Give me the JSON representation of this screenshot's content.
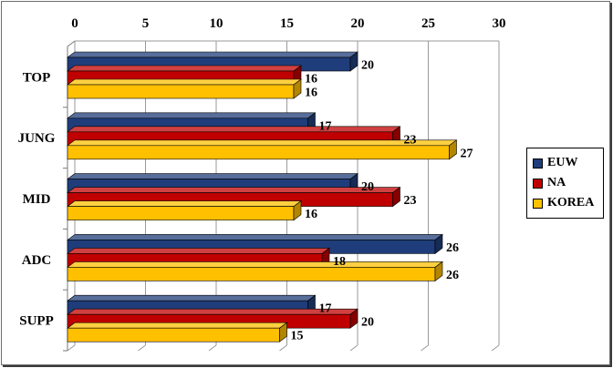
{
  "chart_data": {
    "type": "bar",
    "orientation": "horizontal",
    "style": "3d",
    "categories": [
      "TOP",
      "JUNG",
      "MID",
      "ADC",
      "SUPP"
    ],
    "series": [
      {
        "name": "EUW",
        "color": "#1f3d7a",
        "values": [
          20,
          17,
          20,
          26,
          17
        ]
      },
      {
        "name": "NA",
        "color": "#c00000",
        "values": [
          16,
          23,
          23,
          18,
          20
        ]
      },
      {
        "name": "KOREA",
        "color": "#ffc000",
        "values": [
          16,
          27,
          16,
          26,
          15
        ]
      }
    ],
    "xlim": [
      0,
      30
    ],
    "xticks": [
      "0",
      "5",
      "10",
      "15",
      "20",
      "25",
      "30"
    ],
    "x_axis_position": "top",
    "grid": true,
    "legend_position": "right",
    "title": "",
    "xlabel": "",
    "ylabel": ""
  }
}
